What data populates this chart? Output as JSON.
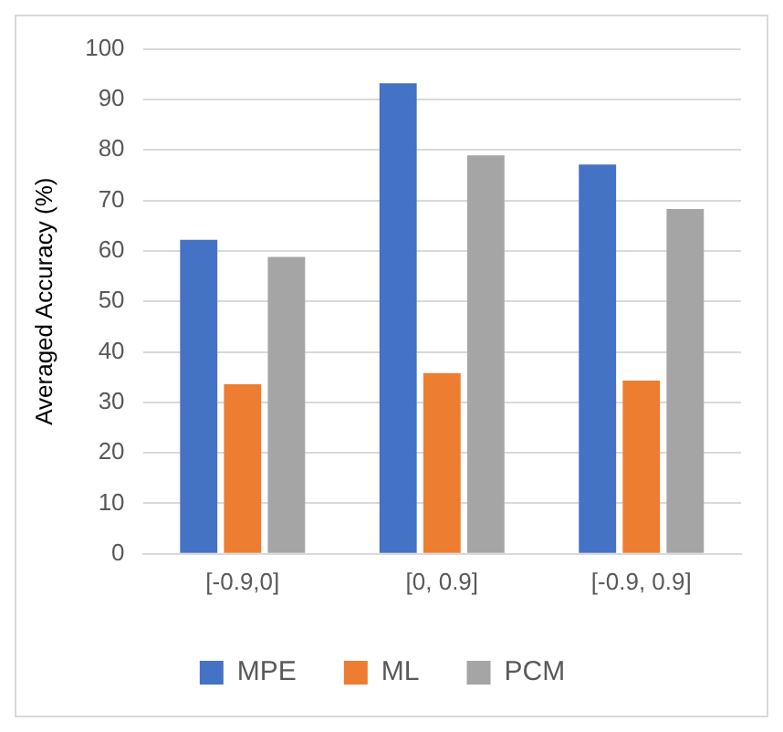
{
  "chart_data": {
    "type": "bar",
    "ylabel": "Averaged Accuracy (%)",
    "categories": [
      "[-0.9,0]",
      "[0, 0.9]",
      "[-0.9, 0.9]"
    ],
    "series": [
      {
        "name": "MPE",
        "color": "#4472c4",
        "values": [
          62.2,
          93.2,
          77.1
        ]
      },
      {
        "name": "ML",
        "color": "#ed7d31",
        "values": [
          33.6,
          35.8,
          34.3
        ]
      },
      {
        "name": "PCM",
        "color": "#a5a5a5",
        "values": [
          58.8,
          78.9,
          68.3
        ]
      }
    ],
    "ylim": [
      0,
      100
    ],
    "yticks": [
      0,
      10,
      20,
      30,
      40,
      50,
      60,
      70,
      80,
      90,
      100
    ],
    "grid": "y",
    "legend": "bottom"
  }
}
